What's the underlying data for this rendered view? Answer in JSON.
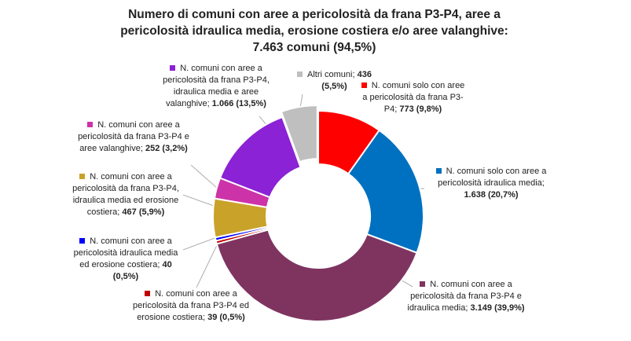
{
  "chart_data": {
    "type": "donut",
    "title": "Numero di comuni con aree a pericolosità da frana P3-P4, aree a pericolosità idraulica media, erosione costiera e/o aree valanghive: 7.463 comuni (94,5%)",
    "categories": [
      "N. comuni solo con aree a pericolosità da frana P3-P4;",
      "N. comuni solo con aree a pericolosità idraulica media;",
      "N. comuni con aree a pericolosità da frana P3-P4 e idraulica media;",
      "N. comuni con aree a pericolosità da frana P3-P4 ed erosione costiera;",
      "N. comuni con aree a pericolosità idraulica media ed erosione costiera;",
      "N. comuni con aree a pericolosità da frana P3-P4, idraulica media ed erosione costiera;",
      "N. comuni con aree a pericolosità da frana P3-P4 e aree valanghive;",
      "N. comuni con aree a pericolosità da frana P3-P4, idraulica media e aree valanghive;",
      "Altri comuni;"
    ],
    "values": [
      773,
      1638,
      3149,
      39,
      40,
      467,
      252,
      1066,
      436
    ],
    "value_labels": [
      "773",
      "1.638",
      "3.149",
      "39",
      "40",
      "467",
      "252",
      "1.066",
      "436"
    ],
    "percents": [
      9.8,
      20.7,
      39.9,
      0.5,
      0.5,
      5.9,
      3.2,
      13.5,
      5.5
    ],
    "percent_labels": [
      "(9,8%)",
      "(20,7%)",
      "(39,9%)",
      "(0,5%)",
      "(0,5%)",
      "(5,9%)",
      "(3,2%)",
      "(13,5%)",
      "(5,5%)"
    ],
    "colors": [
      "#ff0000",
      "#0070c0",
      "#7f3460",
      "#c00000",
      "#0000ff",
      "#c9a22a",
      "#cc33a8",
      "#8b22d6",
      "#bfbfbf"
    ]
  }
}
